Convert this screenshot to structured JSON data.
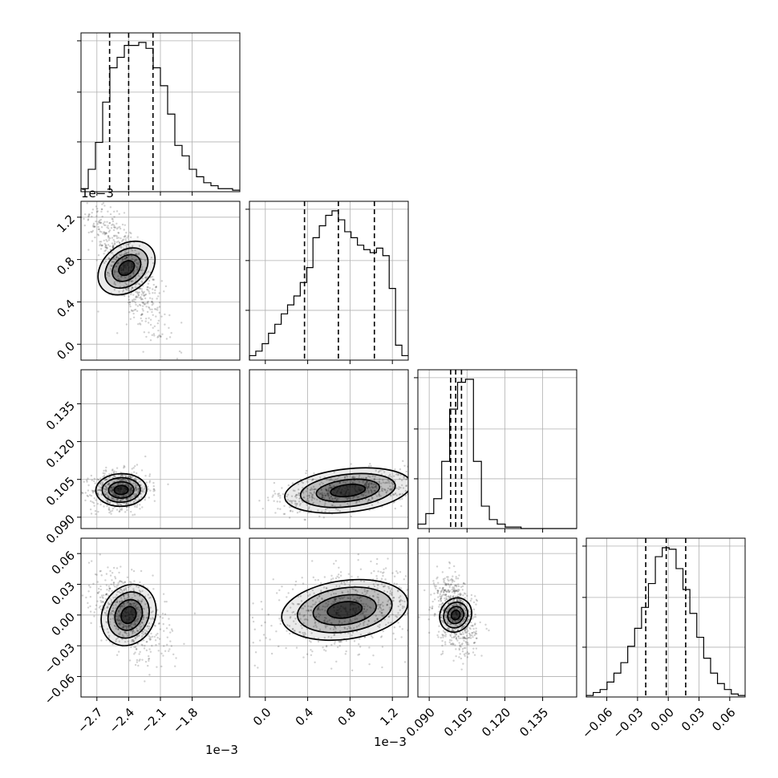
{
  "chart_data": {
    "type": "corner",
    "parameters": [
      {
        "range": [
          -2.85,
          -1.35
        ],
        "ticks": [
          -2.7,
          -2.4,
          -2.1,
          -1.8
        ],
        "tick_labels": [
          "−2.7",
          "−2.4",
          "−2.1",
          "−1.8"
        ],
        "offset_label": "1e−3"
      },
      {
        "range": [
          -0.15,
          1.35
        ],
        "ticks": [
          0.0,
          0.4,
          0.8,
          1.2
        ],
        "tick_labels": [
          "0.0",
          "0.4",
          "0.8",
          "1.2"
        ],
        "offset_label": "1e−3"
      },
      {
        "range": [
          0.0855,
          0.1485
        ],
        "ticks": [
          0.09,
          0.105,
          0.12,
          0.135
        ],
        "tick_labels": [
          "0.090",
          "0.105",
          "0.120",
          "0.135"
        ],
        "offset_label": ""
      },
      {
        "range": [
          -0.08,
          0.075
        ],
        "ticks": [
          -0.06,
          -0.03,
          0.0,
          0.03,
          0.06
        ],
        "tick_labels": [
          "−0.06",
          "−0.03",
          "0.00",
          "0.03",
          "0.06"
        ],
        "offset_label": ""
      }
    ],
    "histograms": [
      {
        "param": 0,
        "counts": [
          0.02,
          0.15,
          0.33,
          0.6,
          0.83,
          0.9,
          0.98,
          0.98,
          1.0,
          0.96,
          0.83,
          0.71,
          0.52,
          0.31,
          0.24,
          0.15,
          0.1,
          0.06,
          0.04,
          0.02,
          0.02,
          0.01
        ],
        "quantiles": [
          -2.58,
          -2.4,
          -2.17
        ]
      },
      {
        "param": 1,
        "counts": [
          0.03,
          0.06,
          0.11,
          0.18,
          0.24,
          0.31,
          0.37,
          0.43,
          0.52,
          0.62,
          0.82,
          0.9,
          0.97,
          1.0,
          0.94,
          0.86,
          0.82,
          0.77,
          0.74,
          0.72,
          0.75,
          0.7,
          0.48,
          0.1,
          0.03
        ],
        "quantiles": [
          0.37,
          0.69,
          1.03
        ]
      },
      {
        "param": 2,
        "counts": [
          0.03,
          0.1,
          0.2,
          0.45,
          0.8,
          0.98,
          1.0,
          0.45,
          0.15,
          0.06,
          0.03,
          0.01,
          0.01,
          0.0,
          0.0,
          0.0,
          0.0,
          0.0,
          0.0,
          0.0
        ],
        "quantiles": [
          0.0985,
          0.1005,
          0.1028
        ]
      },
      {
        "param": 3,
        "counts": [
          0.01,
          0.03,
          0.05,
          0.1,
          0.16,
          0.23,
          0.34,
          0.46,
          0.6,
          0.76,
          0.94,
          1.0,
          0.99,
          0.86,
          0.72,
          0.56,
          0.4,
          0.26,
          0.16,
          0.09,
          0.05,
          0.02,
          0.01
        ],
        "quantiles": [
          -0.022,
          -0.002,
          0.017
        ]
      }
    ],
    "pairs": [
      {
        "x": 0,
        "y": 1,
        "center": [
          -2.42,
          0.72
        ],
        "spread": [
          0.15,
          0.28
        ],
        "rho": -0.8
      },
      {
        "x": 0,
        "y": 2,
        "center": [
          -2.47,
          0.1008
        ],
        "spread": [
          0.12,
          0.0033
        ],
        "rho": 0.05
      },
      {
        "x": 1,
        "y": 2,
        "center": [
          0.78,
          0.1006
        ],
        "spread": [
          0.3,
          0.0035
        ],
        "rho": 0.45
      },
      {
        "x": 0,
        "y": 3,
        "center": [
          -2.4,
          0.0
        ],
        "spread": [
          0.15,
          0.018
        ],
        "rho": -0.5
      },
      {
        "x": 1,
        "y": 3,
        "center": [
          0.75,
          0.005
        ],
        "spread": [
          0.3,
          0.016
        ],
        "rho": 0.3
      },
      {
        "x": 2,
        "y": 3,
        "center": [
          0.1005,
          0.0
        ],
        "spread": [
          0.0035,
          0.016
        ],
        "rho": -0.35
      }
    ]
  }
}
